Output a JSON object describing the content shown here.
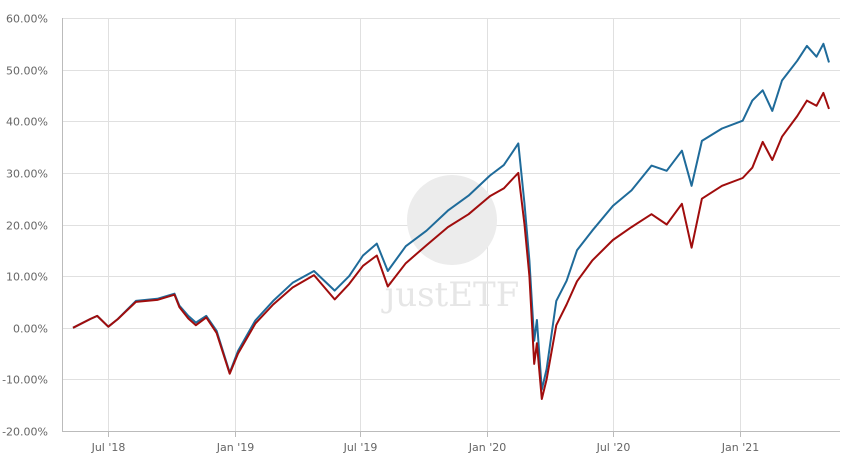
{
  "chart_data": {
    "type": "line",
    "title": "",
    "xlabel": "",
    "ylabel": "",
    "ylim": [
      -20,
      60
    ],
    "yticks": [
      "-20.00%",
      "-10.00%",
      "0.00%",
      "10.00%",
      "20.00%",
      "30.00%",
      "40.00%",
      "50.00%",
      "60.00%"
    ],
    "ytick_values": [
      -20,
      -10,
      0,
      10,
      20,
      30,
      40,
      50,
      60
    ],
    "xticks": [
      {
        "label": "Jul '18",
        "date": "2018-07-01"
      },
      {
        "label": "Jan '19",
        "date": "2019-01-01"
      },
      {
        "label": "Jul '19",
        "date": "2019-07-01"
      },
      {
        "label": "Jan '20",
        "date": "2020-01-01"
      },
      {
        "label": "Jul '20",
        "date": "2020-07-01"
      },
      {
        "label": "Jan '21",
        "date": "2021-01-01"
      }
    ],
    "xlim": [
      "2018-04-25",
      "2021-05-26"
    ],
    "grid": true,
    "watermark": "justETF",
    "x": [
      "2018-05-11",
      "2018-06-05",
      "2018-06-15",
      "2018-07-01",
      "2018-07-15",
      "2018-08-10",
      "2018-09-10",
      "2018-10-05",
      "2018-10-12",
      "2018-10-25",
      "2018-11-05",
      "2018-11-20",
      "2018-12-05",
      "2018-12-24",
      "2019-01-05",
      "2019-01-30",
      "2019-02-25",
      "2019-03-25",
      "2019-04-25",
      "2019-05-25",
      "2019-06-15",
      "2019-07-05",
      "2019-07-25",
      "2019-08-10",
      "2019-09-05",
      "2019-10-05",
      "2019-11-05",
      "2019-12-05",
      "2020-01-05",
      "2020-01-25",
      "2020-02-08",
      "2020-02-15",
      "2020-02-24",
      "2020-03-02",
      "2020-03-09",
      "2020-03-13",
      "2020-03-20",
      "2020-03-27",
      "2020-04-10",
      "2020-04-25",
      "2020-05-10",
      "2020-06-01",
      "2020-07-01",
      "2020-07-28",
      "2020-08-26",
      "2020-09-17",
      "2020-10-09",
      "2020-10-23",
      "2020-11-07",
      "2020-12-06",
      "2021-01-05",
      "2021-01-19",
      "2021-02-03",
      "2021-02-17",
      "2021-03-03",
      "2021-03-25",
      "2021-04-08",
      "2021-04-22",
      "2021-05-02",
      "2021-05-10"
    ],
    "series": [
      {
        "name": "Blue",
        "color": "#1f6b9a",
        "values": [
          0,
          1.7,
          2.3,
          0.2,
          1.7,
          5.2,
          5.6,
          6.6,
          4.3,
          2.3,
          1.0,
          2.3,
          -0.6,
          -8.7,
          -4.5,
          1.4,
          5.2,
          8.7,
          11.0,
          7.2,
          10.0,
          14.0,
          16.3,
          11.0,
          15.8,
          18.8,
          22.7,
          25.6,
          29.5,
          31.5,
          34.3,
          35.7,
          24.0,
          13.0,
          -2.5,
          1.5,
          -12.0,
          -8.0,
          5.2,
          9.1,
          15.0,
          18.8,
          23.6,
          26.6,
          31.4,
          30.4,
          34.3,
          27.5,
          36.2,
          38.6,
          40.1,
          44.0,
          46.0,
          42.0,
          47.9,
          51.7,
          54.6,
          52.5,
          55.0,
          51.4
        ]
      },
      {
        "name": "Red",
        "color": "#a00d0d",
        "values": [
          0,
          1.7,
          2.3,
          0.2,
          1.7,
          5.0,
          5.4,
          6.4,
          4.0,
          1.8,
          0.5,
          2.0,
          -1.0,
          -8.9,
          -5.0,
          0.8,
          4.5,
          7.8,
          10.2,
          5.5,
          8.5,
          12.0,
          14.0,
          8.0,
          12.5,
          16.0,
          19.5,
          22.0,
          25.5,
          27.0,
          29.0,
          30.0,
          20.0,
          10.0,
          -7.0,
          -3.0,
          -13.8,
          -10.0,
          0.5,
          4.5,
          9.0,
          13.0,
          17.0,
          19.5,
          22.0,
          20.0,
          24.0,
          15.5,
          25.0,
          27.5,
          29.0,
          31.0,
          36.0,
          32.5,
          37.0,
          41.0,
          44.0,
          43.0,
          45.5,
          42.4
        ]
      }
    ]
  }
}
